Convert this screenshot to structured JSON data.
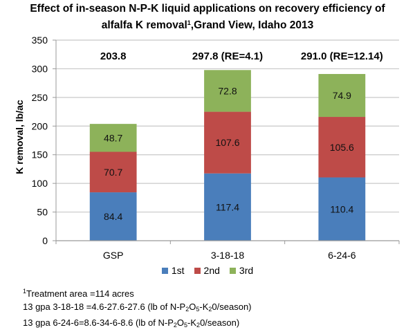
{
  "chart_data": {
    "type": "bar",
    "stacked": true,
    "title": "Effect of in-season N-P-K liquid applications on recovery efficiency of alfalfa K removal¹,Grand View, Idaho 2013",
    "title_lines": [
      "Effect of in-season N-P-K liquid applications on recovery efficiency of",
      "alfalfa K removal",
      ",Grand View, Idaho 2013"
    ],
    "title_sup": "1",
    "xlabel": "",
    "ylabel": "K removal, lb/ac",
    "ylim": [
      0,
      350
    ],
    "yticks": [
      0,
      50,
      100,
      150,
      200,
      250,
      300,
      350
    ],
    "grid": true,
    "legend_position": "bottom",
    "categories": [
      "GSP",
      "3-18-18",
      "6-24-6"
    ],
    "series": [
      {
        "name": "1st",
        "color": "#4a7ebb",
        "values": [
          84.4,
          117.4,
          110.4
        ]
      },
      {
        "name": "2nd",
        "color": "#be4b48",
        "values": [
          70.7,
          107.6,
          105.6
        ]
      },
      {
        "name": "3rd",
        "color": "#8db25a",
        "values": [
          48.7,
          72.8,
          74.9
        ]
      }
    ],
    "total_labels": [
      "203.8",
      "297.8 (RE=4.1)",
      "291.0 (RE=12.14)"
    ],
    "gridline_color": "#c8c8c8"
  },
  "footnotes": {
    "line1_sup": "1",
    "line1": "Treatment area =114 acres",
    "line2_a": "13 gpa 3-18-18 =4.6-27.6-27.6 (lb of N-P",
    "line3_a": "13 gpa 6-24-6=8.6-34-6-8.6  (lb of N-P",
    "sub_2": "2",
    "mid_o": "O",
    "sub_5": "5",
    "mid_k": "-K",
    "tail": "0/season)"
  }
}
